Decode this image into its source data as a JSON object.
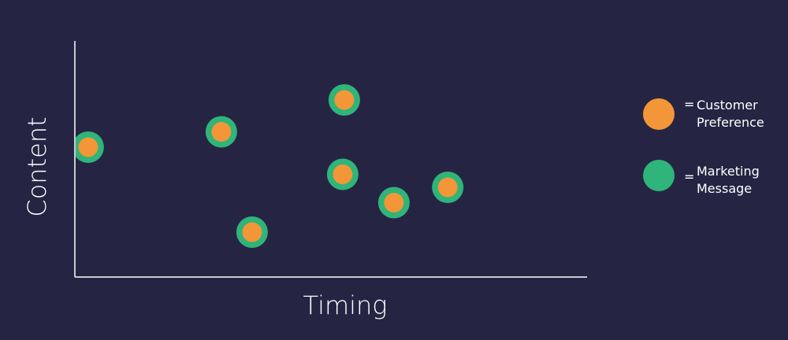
{
  "colors": {
    "background": "#262443",
    "axis": "#c9c9d4",
    "customer_preference": "#f39637",
    "marketing_message": "#2fb47a",
    "text": "#ffffff"
  },
  "chart_data": {
    "type": "scatter",
    "title": "",
    "xlabel": "Timing",
    "ylabel": "Content",
    "xlim": [
      0,
      100
    ],
    "ylim": [
      0,
      100
    ],
    "grid": false,
    "legend_position": "right",
    "tick_labels": false,
    "series": [
      {
        "name": "Marketing Message",
        "legend_text": "= Marketing Message",
        "legend_lines": [
          "Marketing",
          "Message"
        ],
        "color": "#2fb47a",
        "values": [
          {
            "x": 2.6,
            "y": 55
          },
          {
            "x": 28.6,
            "y": 61.5
          },
          {
            "x": 34.6,
            "y": 19
          },
          {
            "x": 52.6,
            "y": 75
          },
          {
            "x": 52.3,
            "y": 43.5
          },
          {
            "x": 62.3,
            "y": 31.5
          },
          {
            "x": 72.8,
            "y": 38
          }
        ]
      },
      {
        "name": "Customer Preference",
        "legend_text": "= Customer Preference",
        "legend_lines": [
          "Customer",
          "Preference"
        ],
        "color": "#f39637",
        "values": [
          {
            "x": 2.6,
            "y": 55
          },
          {
            "x": 28.6,
            "y": 61.5
          },
          {
            "x": 34.6,
            "y": 19
          },
          {
            "x": 52.6,
            "y": 75
          },
          {
            "x": 52.3,
            "y": 43.5
          },
          {
            "x": 62.3,
            "y": 31.5
          },
          {
            "x": 72.8,
            "y": 38
          }
        ]
      }
    ]
  }
}
